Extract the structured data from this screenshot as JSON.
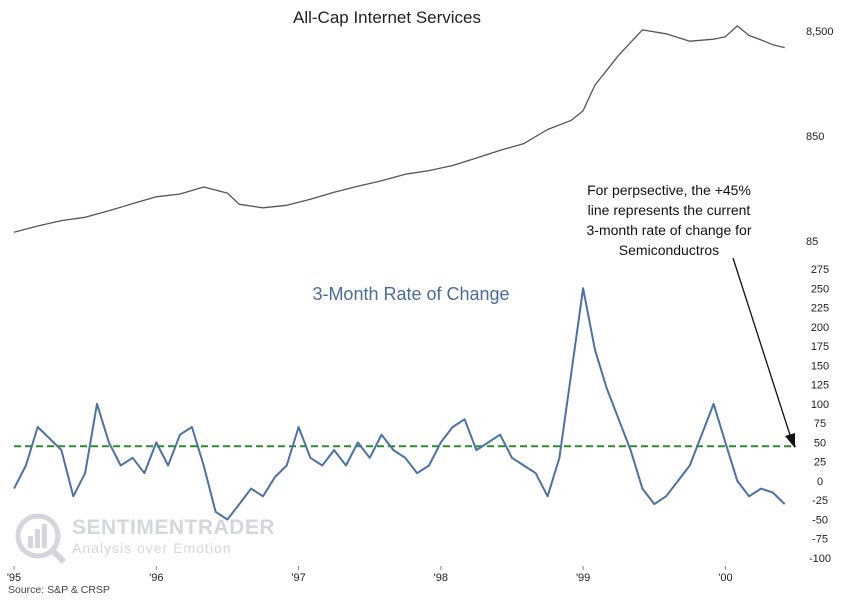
{
  "watermark": {
    "brand": "SENTIMENTRADER",
    "tagline": "Analysis over Emotion"
  },
  "source": "Source: S&P & CRSP",
  "annotation": {
    "lines": [
      "For perpsective, the +45%",
      "line represents the current",
      "3-month rate of change for",
      "Semiconductros"
    ]
  },
  "colors": {
    "top_line": "#555555",
    "bottom_line": "#4a72a8",
    "reference_line": "#2e8b2e",
    "arrow": "#111111"
  },
  "chart_data": [
    {
      "type": "line",
      "title": "All-Cap Internet Services",
      "yscale": "log",
      "yticks": [
        85,
        850,
        8500
      ],
      "ytick_labels": [
        "85",
        "850",
        "8,500"
      ],
      "ylim": [
        85,
        10000
      ],
      "xlim": [
        "1995-01-01",
        "2000-06-30"
      ],
      "x": [
        "1995-01",
        "1995-03",
        "1995-05",
        "1995-07",
        "1995-09",
        "1995-11",
        "1996-01",
        "1996-03",
        "1996-05",
        "1996-07",
        "1996-08",
        "1996-10",
        "1996-12",
        "1997-02",
        "1997-04",
        "1997-06",
        "1997-08",
        "1997-10",
        "1997-12",
        "1998-02",
        "1998-04",
        "1998-06",
        "1998-08",
        "1998-10",
        "1998-12",
        "1999-01",
        "1999-02",
        "1999-03",
        "1999-04",
        "1999-06",
        "1999-08",
        "1999-10",
        "1999-12",
        "2000-01",
        "2000-02",
        "2000-03",
        "2000-04",
        "2000-05",
        "2000-06"
      ],
      "values": [
        103,
        118,
        133,
        143,
        165,
        193,
        224,
        238,
        278,
        243,
        190,
        176,
        186,
        212,
        248,
        282,
        318,
        368,
        398,
        445,
        525,
        620,
        720,
        980,
        1200,
        1480,
        2600,
        3600,
        5000,
        8700,
        8000,
        6800,
        7100,
        7500,
        9500,
        7700,
        7000,
        6300,
        5900
      ],
      "series": [
        {
          "name": "All-Cap Internet Services"
        }
      ]
    },
    {
      "type": "line",
      "title": "3-Month Rate of Change",
      "ylim": [
        -100,
        275
      ],
      "yticks": [
        -100,
        -75,
        -50,
        -25,
        0,
        25,
        50,
        75,
        100,
        125,
        150,
        175,
        200,
        225,
        250,
        275
      ],
      "xlim": [
        "1995-01-01",
        "2000-06-30"
      ],
      "xtick_labels": [
        "'95",
        "'96",
        "'97",
        "'98",
        "'99",
        "'00"
      ],
      "xticks": [
        "1995-01-01",
        "1996-01-01",
        "1997-01-01",
        "1998-01-01",
        "1999-01-01",
        "2000-01-01"
      ],
      "reference_line": {
        "y": 45,
        "style": "dashed"
      },
      "x": [
        "1995-01",
        "1995-02",
        "1995-03",
        "1995-04",
        "1995-05",
        "1995-06",
        "1995-07",
        "1995-08",
        "1995-09",
        "1995-10",
        "1995-11",
        "1995-12",
        "1996-01",
        "1996-02",
        "1996-03",
        "1996-04",
        "1996-05",
        "1996-06",
        "1996-07",
        "1996-08",
        "1996-09",
        "1996-10",
        "1996-11",
        "1996-12",
        "1997-01",
        "1997-02",
        "1997-03",
        "1997-04",
        "1997-05",
        "1997-06",
        "1997-07",
        "1997-08",
        "1997-09",
        "1997-10",
        "1997-11",
        "1997-12",
        "1998-01",
        "1998-02",
        "1998-03",
        "1998-04",
        "1998-05",
        "1998-06",
        "1998-07",
        "1998-08",
        "1998-09",
        "1998-10",
        "1998-11",
        "1998-12",
        "1999-01",
        "1999-02",
        "1999-03",
        "1999-04",
        "1999-05",
        "1999-06",
        "1999-07",
        "1999-08",
        "1999-09",
        "1999-10",
        "1999-11",
        "1999-12",
        "2000-01",
        "2000-02",
        "2000-03",
        "2000-04",
        "2000-05",
        "2000-06"
      ],
      "values": [
        -10,
        20,
        70,
        55,
        40,
        -20,
        10,
        100,
        50,
        20,
        30,
        10,
        50,
        20,
        60,
        70,
        20,
        -40,
        -50,
        -30,
        -10,
        -20,
        5,
        20,
        70,
        30,
        20,
        40,
        20,
        50,
        30,
        60,
        40,
        30,
        10,
        20,
        50,
        70,
        80,
        40,
        50,
        60,
        30,
        20,
        10,
        -20,
        30,
        140,
        250,
        170,
        120,
        80,
        40,
        -10,
        -30,
        -20,
        0,
        20,
        60,
        100,
        50,
        0,
        -20,
        -10,
        -15,
        -30
      ],
      "series": [
        {
          "name": "3-Month Rate of Change"
        }
      ]
    }
  ]
}
